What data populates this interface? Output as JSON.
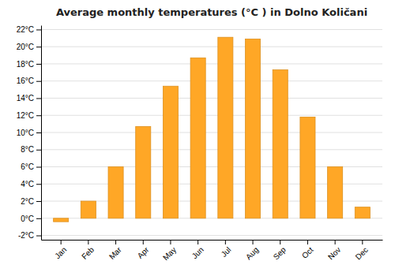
{
  "chart_data": {
    "type": "bar",
    "title": "Average monthly temperatures (°C ) in Dolno Količani",
    "categories": [
      "Jan",
      "Feb",
      "Mar",
      "Apr",
      "May",
      "Jun",
      "Jul",
      "Aug",
      "Sep",
      "Oct",
      "Nov",
      "Dec"
    ],
    "values": [
      -0.4,
      2.0,
      6.0,
      10.7,
      15.4,
      18.7,
      21.1,
      20.9,
      17.3,
      11.8,
      6.0,
      1.3
    ],
    "color": "#FFA726",
    "ylim": [
      -2.5,
      22.5
    ],
    "yticks": [
      {
        "value": -2,
        "label": "-2°C"
      },
      {
        "value": 0,
        "label": "0°C"
      },
      {
        "value": 2,
        "label": "2°C"
      },
      {
        "value": 4,
        "label": "4°C"
      },
      {
        "value": 6,
        "label": "6°C"
      },
      {
        "value": 8,
        "label": "8°C"
      },
      {
        "value": 10,
        "label": "10°C"
      },
      {
        "value": 12,
        "label": "12°C"
      },
      {
        "value": 14,
        "label": "14°C"
      },
      {
        "value": 16,
        "label": "16°C"
      },
      {
        "value": 18,
        "label": "18°C"
      },
      {
        "value": 20,
        "label": "20°C"
      },
      {
        "value": 22,
        "label": "22°C"
      }
    ],
    "grid": true
  }
}
